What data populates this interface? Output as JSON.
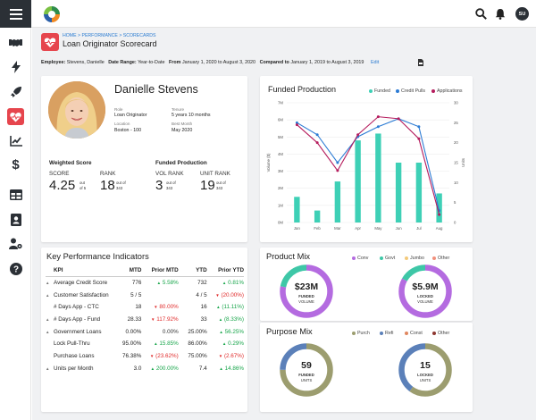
{
  "header": {
    "breadcrumb": [
      "HOME",
      ">",
      "PERFORMANCE",
      ">",
      "SCORECARDS"
    ],
    "title": "Loan Originator Scorecard",
    "avatar": "SU"
  },
  "filters": {
    "employee_label": "Employee:",
    "employee": "Stevens, Danielle",
    "range_label": "Date Range:",
    "range": "Year-to-Date",
    "from_label": "From",
    "from": "January 1, 2020 to August 3, 2020",
    "compared_label": "Compared to",
    "compared": "January 1, 2019 to August 3, 2019",
    "edit": "Edit"
  },
  "nav": {
    "items": [
      "handshake-icon",
      "bolt-icon",
      "rocket-icon",
      "heart-pulse-icon",
      "chart-line-icon",
      "dollar-icon",
      "table-icon",
      "id-card-icon",
      "user-gear-icon",
      "help-icon"
    ]
  },
  "profile": {
    "name": "Danielle Stevens",
    "role_label": "Role",
    "role": "Loan Originator",
    "tenure_label": "Tenure",
    "tenure": "5 years 10 months",
    "location_label": "Location",
    "location": "Boston - 100",
    "best_label": "Best Month",
    "best": "May 2020",
    "weighted": {
      "title": "Weighted Score",
      "score_label": "SCORE",
      "score": "4.25",
      "score_sub1": "out",
      "score_sub2": "of 5",
      "rank_label": "RANK",
      "rank": "18",
      "rank_sub1": "out of",
      "rank_sub2": "343"
    },
    "funded": {
      "title": "Funded Production",
      "vol_label": "VOL RANK",
      "vol": "3",
      "vol_sub1": "out of",
      "vol_sub2": "343",
      "unit_label": "UNIT RANK",
      "unit": "19",
      "unit_sub1": "out of",
      "unit_sub2": "343"
    }
  },
  "chart_data": {
    "type": "bar",
    "title": "Funded Production",
    "categories": [
      "Jan",
      "Feb",
      "Mar",
      "Apr",
      "May",
      "Jun",
      "Jul",
      "Aug"
    ],
    "ylabel": "Volume ($)",
    "y2label": "Units",
    "ylim": [
      0,
      7000000
    ],
    "y2lim": [
      0,
      30
    ],
    "yticks": [
      "0M",
      "1M",
      "2M",
      "3M",
      "4M",
      "5M",
      "6M",
      "7M"
    ],
    "y2ticks": [
      "0",
      "5",
      "10",
      "15",
      "20",
      "25",
      "30"
    ],
    "series": [
      {
        "name": "Funded",
        "type": "bar",
        "color": "#3ed0b6",
        "values": [
          1500000,
          700000,
          2400000,
          4800000,
          5200000,
          3500000,
          3500000,
          1700000
        ]
      },
      {
        "name": "Credit Pulls",
        "type": "line",
        "color": "#2b7bd4",
        "values": [
          25,
          22,
          15,
          21.5,
          24,
          26,
          24,
          3
        ]
      },
      {
        "name": "Applications",
        "type": "line",
        "color": "#b51c5d",
        "values": [
          24.5,
          20,
          13,
          22,
          26.5,
          26,
          21,
          2
        ]
      }
    ]
  },
  "kpi": {
    "title": "Key Performance Indicators",
    "headers": [
      "KPI",
      "MTD",
      "Prior MTD",
      "YTD",
      "Prior YTD"
    ],
    "rows": [
      {
        "arrow": "▲",
        "name": "Average Credit Score",
        "mtd": "776",
        "pm_arrow": "▲",
        "pm": "5.58%",
        "pm_c": "g",
        "ytd": "732",
        "py_arrow": "▲",
        "py": "0.81%",
        "py_c": "g"
      },
      {
        "arrow": "▲",
        "name": "Customer Satisfaction",
        "mtd": "5 / 5",
        "pm_arrow": "",
        "pm": "",
        "pm_c": "",
        "ytd": "4 / 5",
        "py_arrow": "▼",
        "py": "(20.00%)",
        "py_c": "r"
      },
      {
        "arrow": "",
        "name": "# Days App - CTC",
        "mtd": "18",
        "pm_arrow": "▼",
        "pm": "80.00%",
        "pm_c": "r",
        "ytd": "16",
        "py_arrow": "▲",
        "py": "(11.11%)",
        "py_c": "g"
      },
      {
        "arrow": "▲",
        "name": "# Days App - Fund",
        "mtd": "28.33",
        "pm_arrow": "▼",
        "pm": "117.92%",
        "pm_c": "r",
        "ytd": "33",
        "py_arrow": "▲",
        "py": "(8.33%)",
        "py_c": "g"
      },
      {
        "arrow": "▲",
        "name": "Government Loans",
        "mtd": "0.00%",
        "pm_arrow": "",
        "pm": "0.00%",
        "pm_c": "",
        "ytd": "25.00%",
        "py_arrow": "▲",
        "py": "56.25%",
        "py_c": "g"
      },
      {
        "arrow": "",
        "name": "Lock Pull-Thru",
        "mtd": "95.00%",
        "pm_arrow": "▲",
        "pm": "15.85%",
        "pm_c": "g",
        "ytd": "86.00%",
        "py_arrow": "▲",
        "py": "0.29%",
        "py_c": "g"
      },
      {
        "arrow": "",
        "name": "Purchase Loans",
        "mtd": "76.38%",
        "pm_arrow": "▼",
        "pm": "(23.62%)",
        "pm_c": "r",
        "ytd": "75.00%",
        "py_arrow": "▼",
        "py": "(2.67%)",
        "py_c": "r"
      },
      {
        "arrow": "▲",
        "name": "Units per Month",
        "mtd": "3.0",
        "pm_arrow": "▲",
        "pm": "200.00%",
        "pm_c": "g",
        "ytd": "7.4",
        "py_arrow": "▲",
        "py": "14.86%",
        "py_c": "g"
      }
    ]
  },
  "product_mix": {
    "title": "Product Mix",
    "legend": [
      {
        "name": "Conv",
        "color": "#b46be0"
      },
      {
        "name": "Govt",
        "color": "#3ec7a7"
      },
      {
        "name": "Jumbo",
        "color": "#f3c97a"
      },
      {
        "name": "Other",
        "color": "#f1907c"
      }
    ],
    "funded": {
      "value": "$23M",
      "label1": "FUNDED",
      "label2": "VOLUME",
      "segments": [
        {
          "color": "#b46be0",
          "fraction": 0.78
        },
        {
          "color": "#3ec7a7",
          "fraction": 0.22
        }
      ]
    },
    "locked": {
      "value": "$5.9M",
      "label1": "LOCKED",
      "label2": "VOLUME",
      "segments": [
        {
          "color": "#b46be0",
          "fraction": 0.83
        },
        {
          "color": "#3ec7a7",
          "fraction": 0.17
        }
      ]
    }
  },
  "purpose_mix": {
    "title": "Purpose Mix",
    "legend": [
      {
        "name": "Purch",
        "color": "#9c9d6f"
      },
      {
        "name": "Refi",
        "color": "#5b80b9"
      },
      {
        "name": "Const",
        "color": "#e0875f"
      },
      {
        "name": "Other",
        "color": "#8d3730"
      }
    ],
    "funded": {
      "value": "59",
      "label1": "FUNDED",
      "label2": "UNITS",
      "segments": [
        {
          "color": "#9c9d6f",
          "fraction": 0.75
        },
        {
          "color": "#5b80b9",
          "fraction": 0.25
        }
      ]
    },
    "locked": {
      "value": "15",
      "label1": "LOCKED",
      "label2": "UNITS",
      "segments": [
        {
          "color": "#9c9d6f",
          "fraction": 0.6
        },
        {
          "color": "#5b80b9",
          "fraction": 0.4
        }
      ]
    }
  }
}
